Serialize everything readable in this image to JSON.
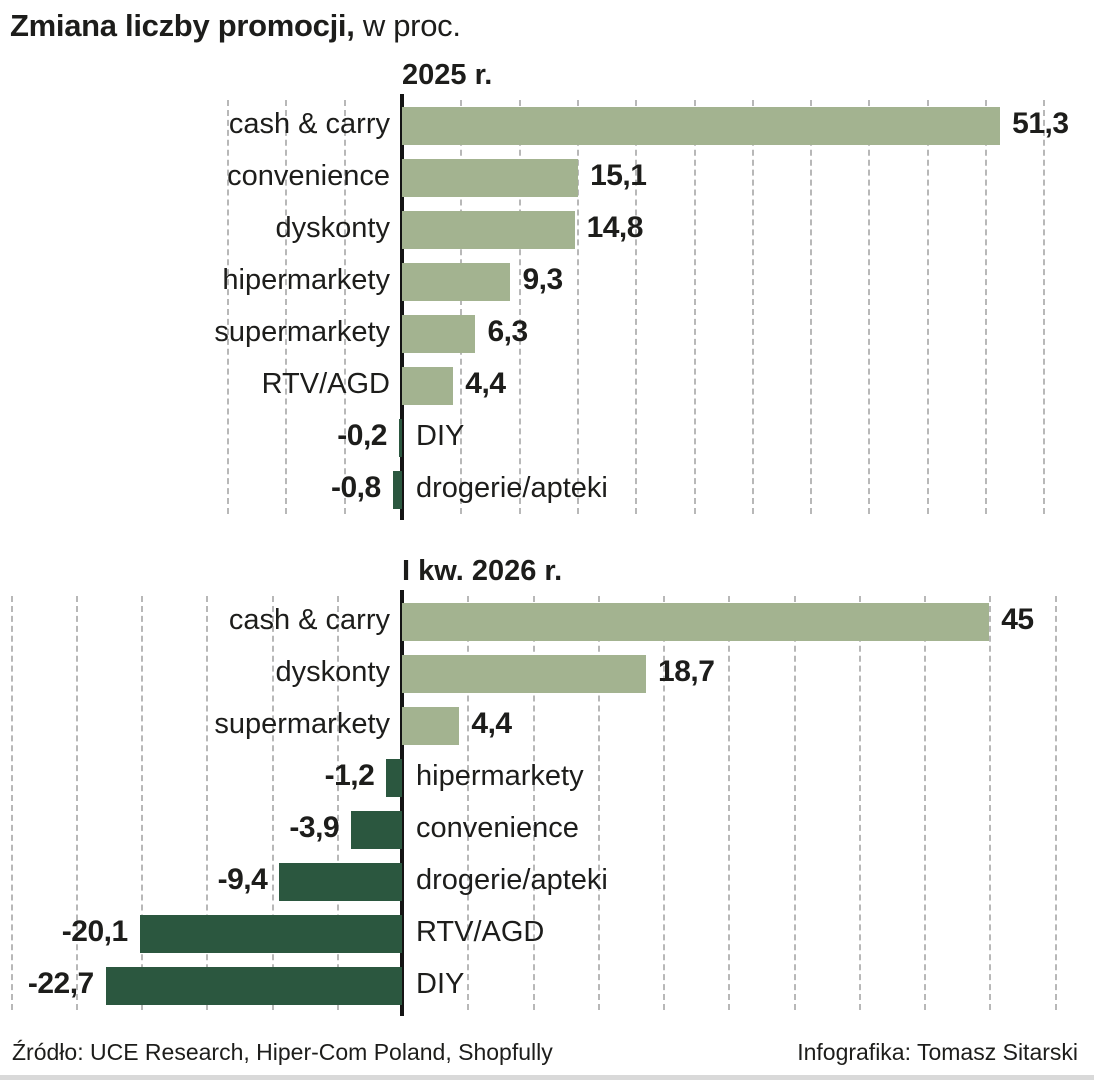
{
  "title": {
    "main": "Zmiana liczby promocji,",
    "suffix": " w proc."
  },
  "colors": {
    "positive": "#a3b390",
    "negative": "#2b573f",
    "axis": "#141414",
    "grid": "#b8b8b8"
  },
  "chart_data": [
    {
      "type": "bar",
      "orientation": "horizontal",
      "title": "2025 r.",
      "unit": "proc.",
      "categories": [
        "cash & carry",
        "convenience",
        "dyskonty",
        "hipermarkety",
        "supermarkety",
        "RTV/AGD",
        "DIY",
        "drogerie/apteki"
      ],
      "values": [
        51.3,
        15.1,
        14.8,
        9.3,
        6.3,
        4.4,
        -0.2,
        -0.8
      ],
      "value_labels": [
        "51,3",
        "15,1",
        "14,8",
        "9,3",
        "6,3",
        "4,4",
        "-0,2",
        "-0,8"
      ],
      "xlim": [
        -15,
        55
      ],
      "grid_step": 5,
      "grid": true,
      "legend": "none"
    },
    {
      "type": "bar",
      "orientation": "horizontal",
      "title": "I kw. 2026 r.",
      "unit": "proc.",
      "categories": [
        "cash & carry",
        "dyskonty",
        "supermarkety",
        "hipermarkety",
        "convenience",
        "drogerie/apteki",
        "RTV/AGD",
        "DIY"
      ],
      "values": [
        45,
        18.7,
        4.4,
        -1.2,
        -3.9,
        -9.4,
        -20.1,
        -22.7
      ],
      "value_labels": [
        "45",
        "18,7",
        "4,4",
        "-1,2",
        "-3,9",
        "-9,4",
        "-20,1",
        "-22,7"
      ],
      "xlim": [
        -30,
        50
      ],
      "grid_step": 5,
      "grid": true,
      "legend": "none"
    }
  ],
  "footer": {
    "source": "Źródło: UCE Research, Hiper-Com Poland, Shopfully",
    "credit": "Infografika: Tomasz Sitarski"
  }
}
